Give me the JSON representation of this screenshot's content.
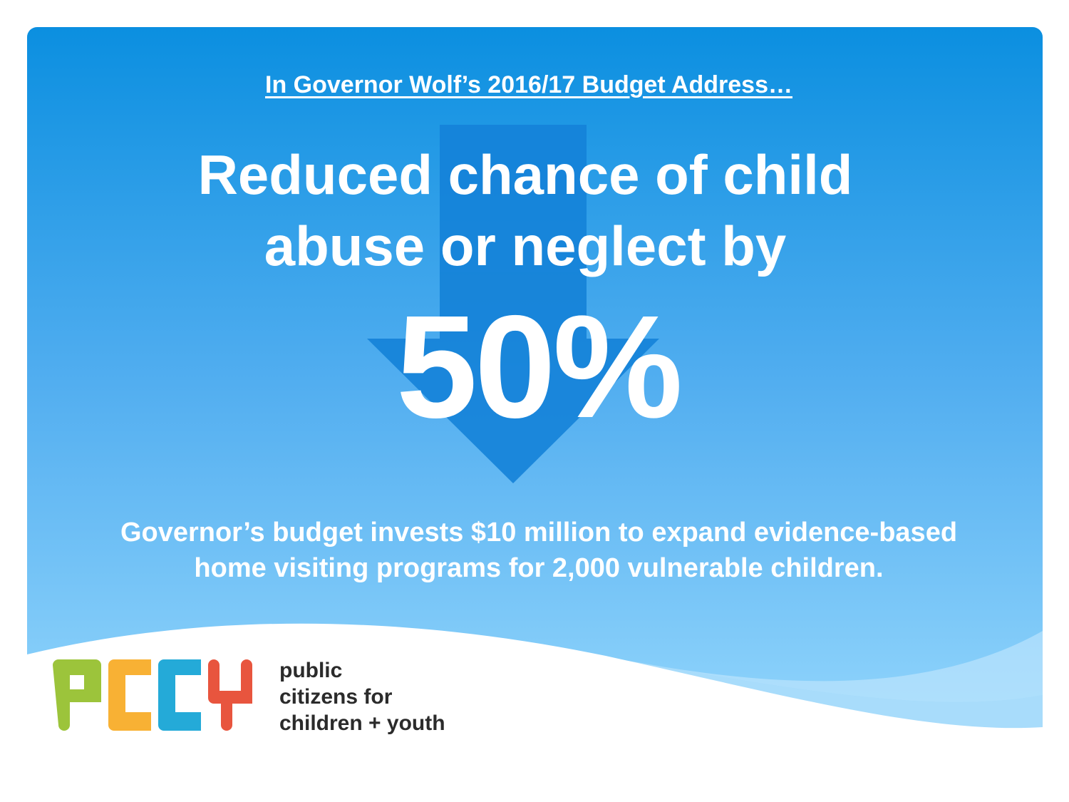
{
  "slide": {
    "kicker": "In Governor Wolf’s 2016/17 Budget Address…",
    "headline_line1": "Reduced chance of child",
    "headline_line2": "abuse or neglect by",
    "stat": "50%",
    "body_line1": "Governor’s budget invests $10 million to expand evidence-based",
    "body_line2": "home visiting programs for 2,000 vulnerable children.",
    "arrow_icon": "down-arrow-icon"
  },
  "logo": {
    "letters": "PCCY",
    "org_line1": "public",
    "org_line2": "citizens for",
    "org_line3": "children + youth",
    "colors": {
      "p": "#9cc43b",
      "c1": "#f8b134",
      "c2": "#24aad8",
      "y": "#e8553e"
    }
  },
  "colors": {
    "bg_top": "#0b8fe0",
    "bg_bottom": "#8fd4fb",
    "arrow": "#1482d8"
  }
}
